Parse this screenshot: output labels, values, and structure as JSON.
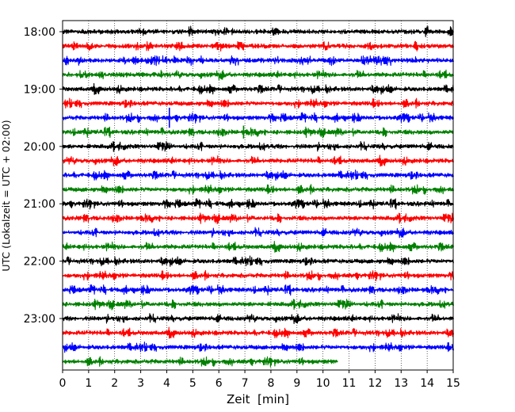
{
  "chart_data": {
    "type": "line",
    "subtype": "helicorder (seismogram drum plot)",
    "title": "",
    "xlabel": "Zeit  [min]",
    "ylabel": "UTC (Lokalzeit = UTC + 02:00)",
    "xlim": [
      0,
      15
    ],
    "x_ticks": [
      "0",
      "1",
      "2",
      "3",
      "4",
      "5",
      "6",
      "7",
      "8",
      "9",
      "10",
      "11",
      "12",
      "13",
      "14",
      "15"
    ],
    "y_tick_labels": [
      "18:00",
      "19:00",
      "20:00",
      "21:00",
      "22:00",
      "23:00"
    ],
    "grid": "vertical dotted lines at each minute",
    "color_cycle": [
      "#000000",
      "#ff0000",
      "#0000ff",
      "#008000"
    ],
    "trace_interval_minutes": 15,
    "traces": [
      {
        "start": "18:00",
        "end_minute": 15
      },
      {
        "start": "18:15",
        "end_minute": 15
      },
      {
        "start": "18:30",
        "end_minute": 15
      },
      {
        "start": "18:45",
        "end_minute": 15
      },
      {
        "start": "19:00",
        "end_minute": 15
      },
      {
        "start": "19:15",
        "end_minute": 15
      },
      {
        "start": "19:30",
        "end_minute": 15,
        "spikes": [
          {
            "minute": 4.1,
            "amplitude": 0.7
          }
        ]
      },
      {
        "start": "19:45",
        "end_minute": 15,
        "spikes": [
          {
            "minute": 6.95,
            "amplitude": 0.45
          }
        ]
      },
      {
        "start": "20:00",
        "end_minute": 15
      },
      {
        "start": "20:15",
        "end_minute": 15
      },
      {
        "start": "20:30",
        "end_minute": 15
      },
      {
        "start": "20:45",
        "end_minute": 15
      },
      {
        "start": "21:00",
        "end_minute": 15
      },
      {
        "start": "21:15",
        "end_minute": 15
      },
      {
        "start": "21:30",
        "end_minute": 15
      },
      {
        "start": "21:45",
        "end_minute": 15
      },
      {
        "start": "22:00",
        "end_minute": 15
      },
      {
        "start": "22:15",
        "end_minute": 15
      },
      {
        "start": "22:30",
        "end_minute": 15
      },
      {
        "start": "22:45",
        "end_minute": 15
      },
      {
        "start": "23:00",
        "end_minute": 15
      },
      {
        "start": "23:15",
        "end_minute": 15
      },
      {
        "start": "23:30",
        "end_minute": 15
      },
      {
        "start": "23:45",
        "end_minute": 10.55
      }
    ]
  }
}
